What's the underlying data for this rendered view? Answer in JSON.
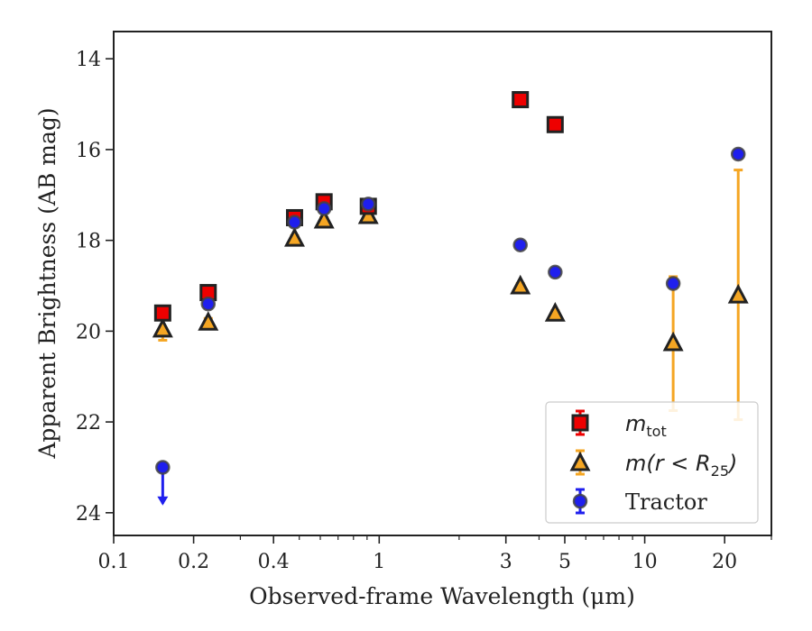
{
  "chart_data": {
    "type": "scatter",
    "xlabel": "Observed-frame Wavelength (μm)",
    "ylabel": "Apparent Brightness (AB mag)",
    "x_scale": "log",
    "y_inverted": true,
    "xlim": [
      0.1,
      30
    ],
    "ylim": [
      24.5,
      13.4
    ],
    "x_ticks": [
      {
        "value": 0.1,
        "label": "0.1"
      },
      {
        "value": 0.2,
        "label": "0.2"
      },
      {
        "value": 0.4,
        "label": "0.4"
      },
      {
        "value": 1,
        "label": "1"
      },
      {
        "value": 3,
        "label": "3"
      },
      {
        "value": 5,
        "label": "5"
      },
      {
        "value": 10,
        "label": "10"
      },
      {
        "value": 20,
        "label": "20"
      }
    ],
    "y_ticks": [
      {
        "value": 14,
        "label": "14"
      },
      {
        "value": 16,
        "label": "16"
      },
      {
        "value": 18,
        "label": "18"
      },
      {
        "value": 20,
        "label": "20"
      },
      {
        "value": 22,
        "label": "22"
      },
      {
        "value": 24,
        "label": "24"
      }
    ],
    "grid": false,
    "legend_position": "lower-right",
    "series": [
      {
        "name": "m_tot",
        "label_main": "m",
        "label_sub": "tot",
        "marker": "square",
        "color": "#ee0000",
        "edge": "#222222",
        "points": [
          {
            "x": 0.153,
            "y": 19.6,
            "err": 0.08
          },
          {
            "x": 0.227,
            "y": 19.15,
            "err": 0.05
          },
          {
            "x": 0.48,
            "y": 17.5,
            "err": 0.05
          },
          {
            "x": 0.62,
            "y": 17.15,
            "err": 0.05
          },
          {
            "x": 0.91,
            "y": 17.25,
            "err": 0.05
          },
          {
            "x": 3.4,
            "y": 14.9,
            "err": 0.05
          },
          {
            "x": 4.6,
            "y": 15.45,
            "err": 0.05
          }
        ]
      },
      {
        "name": "m(r < R25)",
        "label_main": "m(r < R",
        "label_sub": "25",
        "label_tail": ")",
        "marker": "triangle",
        "color": "#f5a623",
        "edge": "#222222",
        "points": [
          {
            "x": 0.153,
            "y": 19.95,
            "err": 0.25
          },
          {
            "x": 0.227,
            "y": 19.8,
            "err": 0.08
          },
          {
            "x": 0.48,
            "y": 17.95,
            "err": 0.05
          },
          {
            "x": 0.62,
            "y": 17.55,
            "err": 0.05
          },
          {
            "x": 0.91,
            "y": 17.45,
            "err": 0.05
          },
          {
            "x": 3.4,
            "y": 19.0,
            "err": 0.05
          },
          {
            "x": 4.6,
            "y": 19.6,
            "err": 0.05
          },
          {
            "x": 12.8,
            "y": 20.25,
            "err_low": 1.5,
            "err_high": 1.45
          },
          {
            "x": 22.5,
            "y": 19.2,
            "err_low": 2.75,
            "err_high": 2.75
          }
        ]
      },
      {
        "name": "Tractor",
        "marker": "circle",
        "color": "#1f1fee",
        "edge": "#444444",
        "points": [
          {
            "x": 0.153,
            "y": 23.0,
            "upper_limit": true
          },
          {
            "x": 0.227,
            "y": 19.4,
            "err": 0.08
          },
          {
            "x": 0.48,
            "y": 17.6,
            "err": 0.05
          },
          {
            "x": 0.62,
            "y": 17.3,
            "err": 0.05
          },
          {
            "x": 0.91,
            "y": 17.2,
            "err": 0.05
          },
          {
            "x": 3.4,
            "y": 18.1,
            "err": 0.05
          },
          {
            "x": 4.6,
            "y": 18.7,
            "err": 0.05
          },
          {
            "x": 12.8,
            "y": 18.95,
            "err": 0.08
          },
          {
            "x": 22.5,
            "y": 16.1,
            "err": 0.08
          }
        ]
      }
    ]
  }
}
